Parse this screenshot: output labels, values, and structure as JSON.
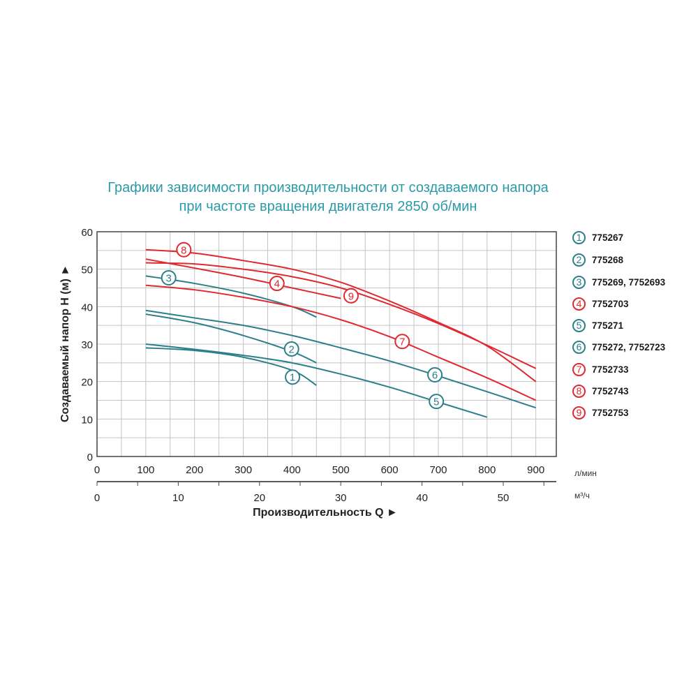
{
  "chart_data": {
    "type": "line",
    "title": "Графики зависимости производительности от создаваемого напора",
    "subtitle": "при частоте вращения двигателя 2850 об/мин",
    "ylabel": "Создаваемый напор H (м) ►",
    "xlabel": "Производительность Q ►",
    "x_unit": "л/мин",
    "x2_unit": "м³/ч",
    "xlim": [
      0,
      942
    ],
    "ylim": [
      0,
      60
    ],
    "x_ticks": [
      0,
      100,
      200,
      300,
      400,
      500,
      600,
      700,
      800,
      900
    ],
    "y_ticks": [
      0,
      10,
      20,
      30,
      40,
      50,
      60
    ],
    "x2_ticks": [
      0,
      10,
      20,
      30,
      40,
      50
    ],
    "grid": true,
    "legend_position": "right",
    "colors": {
      "teal": "#2a7f8a",
      "red": "#e0282e"
    },
    "series": [
      {
        "name": "1",
        "label": "775267",
        "color": "#2a7f8a",
        "x": [
          100,
          200,
          300,
          400,
          450
        ],
        "y": [
          29,
          28.3,
          26.5,
          23,
          19
        ],
        "label_at": [
          401,
          21.2
        ]
      },
      {
        "name": "2",
        "label": "775268",
        "color": "#2a7f8a",
        "x": [
          100,
          200,
          300,
          400,
          450
        ],
        "y": [
          38,
          35.7,
          32.3,
          28,
          25
        ],
        "label_at": [
          399,
          28.7
        ]
      },
      {
        "name": "3",
        "label": "775269, 7752693",
        "color": "#2a7f8a",
        "x": [
          100,
          200,
          300,
          400,
          450
        ],
        "y": [
          48.2,
          46.2,
          43.6,
          40,
          37.2
        ],
        "label_at": [
          147,
          47.7
        ]
      },
      {
        "name": "4",
        "label": "7752703",
        "color": "#e0282e",
        "x": [
          100,
          200,
          300,
          400,
          500
        ],
        "y": [
          52.7,
          50.3,
          47.8,
          45,
          42.2
        ],
        "label_at": [
          369,
          46.2
        ]
      },
      {
        "name": "5",
        "label": "775271",
        "color": "#2a7f8a",
        "x": [
          100,
          200,
          300,
          400,
          500,
          600,
          700,
          800
        ],
        "y": [
          30,
          28.6,
          27,
          25,
          22,
          18.5,
          14.5,
          10.5
        ],
        "label_at": [
          696,
          14.7
        ]
      },
      {
        "name": "6",
        "label": "775272, 7752723",
        "color": "#2a7f8a",
        "x": [
          100,
          200,
          300,
          400,
          500,
          600,
          700,
          800,
          900
        ],
        "y": [
          39,
          37,
          35,
          32.3,
          29,
          25.5,
          21.5,
          17.3,
          13
        ],
        "label_at": [
          693,
          21.8
        ]
      },
      {
        "name": "7",
        "label": "7752733",
        "color": "#e0282e",
        "x": [
          100,
          200,
          300,
          400,
          500,
          600,
          700,
          800,
          900
        ],
        "y": [
          45.7,
          44.5,
          42.5,
          40,
          36.5,
          32,
          26.5,
          21,
          15
        ],
        "label_at": [
          626,
          30.7
        ]
      },
      {
        "name": "8",
        "label": "7752743",
        "color": "#e0282e",
        "x": [
          100,
          200,
          300,
          400,
          500,
          600,
          700,
          800,
          900
        ],
        "y": [
          55.2,
          54.3,
          52.3,
          50,
          46.5,
          41.5,
          35.8,
          29.5,
          20
        ],
        "label_at": [
          178,
          55.2
        ]
      },
      {
        "name": "9",
        "label": "7752753",
        "color": "#e0282e",
        "x": [
          100,
          200,
          300,
          400,
          500,
          600,
          700,
          800,
          900
        ],
        "y": [
          51.7,
          51.4,
          50,
          48,
          45,
          40.6,
          35.5,
          29.7,
          23.5
        ],
        "label_at": [
          521,
          42.9
        ]
      }
    ]
  }
}
